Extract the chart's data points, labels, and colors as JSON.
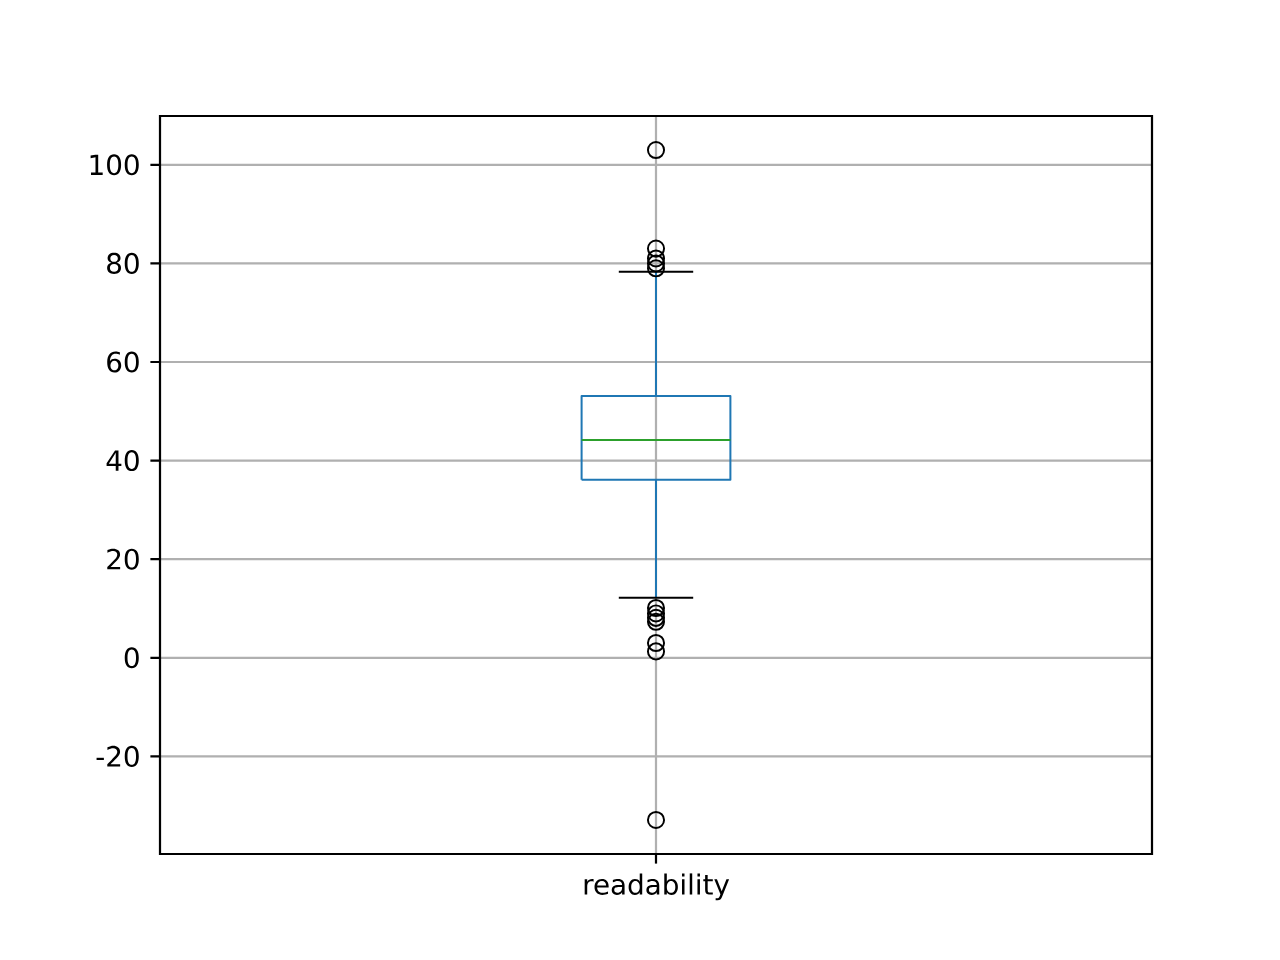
{
  "chart_data": {
    "type": "box",
    "categories": [
      "readability"
    ],
    "color": "#1f77b4",
    "boxes": [
      {
        "low": 12.2,
        "q1": 36.1,
        "median": 44.2,
        "q3": 53.1,
        "high": 78.3,
        "outliers": [
          103,
          83,
          81,
          80,
          79,
          10.1,
          9.0,
          8.1,
          7.3,
          3.0,
          1.3,
          -32.9
        ]
      }
    ],
    "ylim": [
      -39.8,
      109.9
    ],
    "yticks": [
      -20,
      0,
      20,
      40,
      60,
      80,
      100
    ],
    "grid": true
  }
}
